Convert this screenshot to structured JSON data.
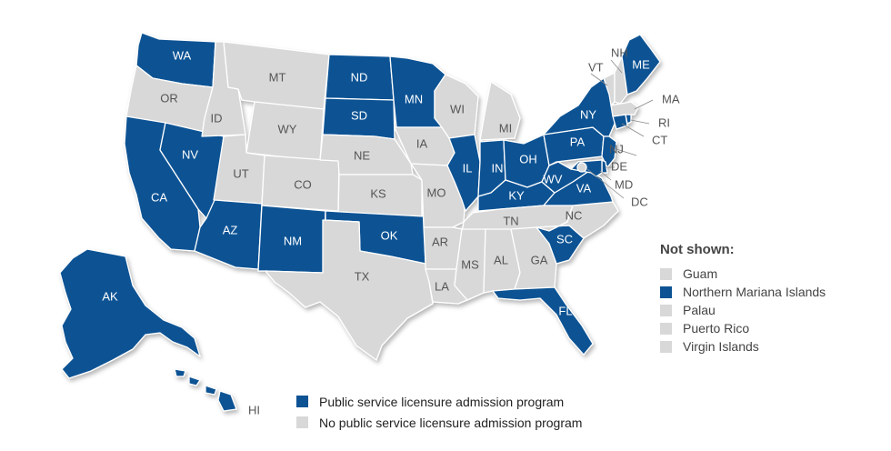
{
  "colors": {
    "program": "#0d5394",
    "no_program": "#d8d8d8",
    "border": "#ffffff"
  },
  "legend": {
    "program": "Public service licensure admission program",
    "no_program": "No public service licensure admission program"
  },
  "not_shown": {
    "title": "Not shown:",
    "items": [
      {
        "name": "Guam",
        "program": false
      },
      {
        "name": "Northern Mariana Islands",
        "program": true
      },
      {
        "name": "Palau",
        "program": false
      },
      {
        "name": "Puerto Rico",
        "program": false
      },
      {
        "name": "Virgin Islands",
        "program": false
      }
    ]
  },
  "states": [
    {
      "code": "WA",
      "program": true
    },
    {
      "code": "OR",
      "program": false
    },
    {
      "code": "CA",
      "program": true
    },
    {
      "code": "NV",
      "program": true
    },
    {
      "code": "ID",
      "program": false
    },
    {
      "code": "MT",
      "program": false
    },
    {
      "code": "WY",
      "program": false
    },
    {
      "code": "UT",
      "program": false
    },
    {
      "code": "AZ",
      "program": true
    },
    {
      "code": "CO",
      "program": false
    },
    {
      "code": "NM",
      "program": true
    },
    {
      "code": "ND",
      "program": true
    },
    {
      "code": "SD",
      "program": true
    },
    {
      "code": "NE",
      "program": false
    },
    {
      "code": "KS",
      "program": false
    },
    {
      "code": "OK",
      "program": true
    },
    {
      "code": "TX",
      "program": false
    },
    {
      "code": "MN",
      "program": true
    },
    {
      "code": "IA",
      "program": false
    },
    {
      "code": "MO",
      "program": false
    },
    {
      "code": "AR",
      "program": false
    },
    {
      "code": "LA",
      "program": false
    },
    {
      "code": "WI",
      "program": false
    },
    {
      "code": "IL",
      "program": true
    },
    {
      "code": "MI",
      "program": false
    },
    {
      "code": "IN",
      "program": true
    },
    {
      "code": "OH",
      "program": true
    },
    {
      "code": "KY",
      "program": true
    },
    {
      "code": "TN",
      "program": false
    },
    {
      "code": "MS",
      "program": false
    },
    {
      "code": "AL",
      "program": false
    },
    {
      "code": "GA",
      "program": false
    },
    {
      "code": "FL",
      "program": true
    },
    {
      "code": "SC",
      "program": true
    },
    {
      "code": "NC",
      "program": false
    },
    {
      "code": "VA",
      "program": true
    },
    {
      "code": "WV",
      "program": true
    },
    {
      "code": "PA",
      "program": true
    },
    {
      "code": "NY",
      "program": true
    },
    {
      "code": "NJ",
      "program": true
    },
    {
      "code": "DE",
      "program": true
    },
    {
      "code": "MD",
      "program": true
    },
    {
      "code": "DC",
      "program": false
    },
    {
      "code": "CT",
      "program": true
    },
    {
      "code": "RI",
      "program": true
    },
    {
      "code": "MA",
      "program": false
    },
    {
      "code": "VT",
      "program": false
    },
    {
      "code": "NH",
      "program": false
    },
    {
      "code": "ME",
      "program": true
    },
    {
      "code": "AK",
      "program": true
    },
    {
      "code": "HI",
      "program": true
    }
  ]
}
